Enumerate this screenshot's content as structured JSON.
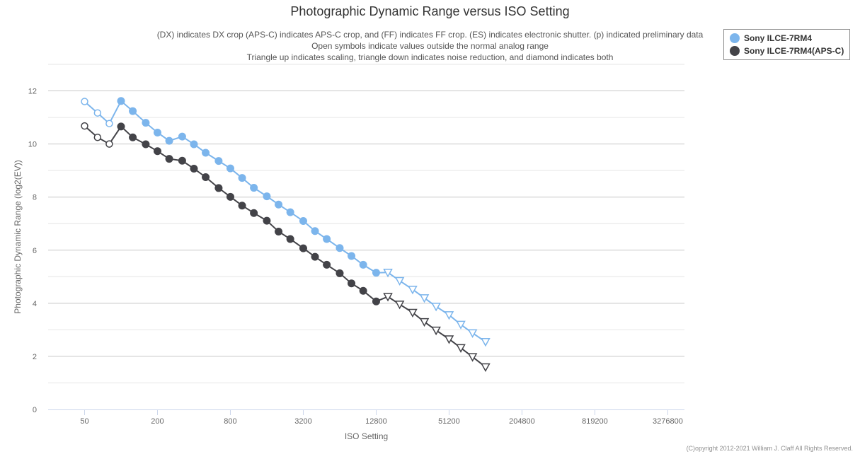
{
  "chart_data": {
    "type": "line",
    "title": "Photographic Dynamic Range versus ISO Setting",
    "subtitle_lines": [
      "(DX) indicates DX crop (APS-C) indicates APS-C crop, and (FF) indicates FF crop. (ES) indicates electronic shutter. (p) indicated preliminary data",
      "Open symbols indicate values outside the normal analog range",
      "Triangle up indicates scaling, triangle down indicates noise reduction, and diamond indicates both"
    ],
    "xlabel": "ISO Setting",
    "ylabel": "Photographic Dynamic Range (log2(EV))",
    "x_scale": "log2",
    "xlim": [
      25,
      4500000
    ],
    "x_ticks": [
      50,
      200,
      800,
      3200,
      12800,
      51200,
      204800,
      819200,
      3276800
    ],
    "x_tick_labels": [
      "50",
      "200",
      "800",
      "3200",
      "12800",
      "51200",
      "204800",
      "819200",
      "3276800"
    ],
    "ylim": [
      0,
      13
    ],
    "y_ticks": [
      0,
      2,
      4,
      6,
      8,
      10,
      12
    ],
    "grid": true,
    "legend_position": "top-right",
    "series": [
      {
        "name": "Sony ILCE-7RM4",
        "color": "#7cb5ec",
        "points": [
          {
            "iso": 50,
            "dr": 11.6,
            "marker": "open-circle"
          },
          {
            "iso": 64,
            "dr": 11.17,
            "marker": "open-circle"
          },
          {
            "iso": 80,
            "dr": 10.77,
            "marker": "open-circle"
          },
          {
            "iso": 100,
            "dr": 11.62,
            "marker": "circle"
          },
          {
            "iso": 125,
            "dr": 11.24,
            "marker": "circle"
          },
          {
            "iso": 160,
            "dr": 10.8,
            "marker": "circle"
          },
          {
            "iso": 200,
            "dr": 10.43,
            "marker": "circle"
          },
          {
            "iso": 250,
            "dr": 10.12,
            "marker": "circle"
          },
          {
            "iso": 320,
            "dr": 10.28,
            "marker": "circle"
          },
          {
            "iso": 400,
            "dr": 9.99,
            "marker": "circle"
          },
          {
            "iso": 500,
            "dr": 9.67,
            "marker": "circle"
          },
          {
            "iso": 640,
            "dr": 9.36,
            "marker": "circle"
          },
          {
            "iso": 800,
            "dr": 9.08,
            "marker": "circle"
          },
          {
            "iso": 1000,
            "dr": 8.72,
            "marker": "circle"
          },
          {
            "iso": 1250,
            "dr": 8.35,
            "marker": "circle"
          },
          {
            "iso": 1600,
            "dr": 8.03,
            "marker": "circle"
          },
          {
            "iso": 2000,
            "dr": 7.72,
            "marker": "circle"
          },
          {
            "iso": 2500,
            "dr": 7.43,
            "marker": "circle"
          },
          {
            "iso": 3200,
            "dr": 7.1,
            "marker": "circle"
          },
          {
            "iso": 4000,
            "dr": 6.72,
            "marker": "circle"
          },
          {
            "iso": 5000,
            "dr": 6.42,
            "marker": "circle"
          },
          {
            "iso": 6400,
            "dr": 6.08,
            "marker": "circle"
          },
          {
            "iso": 8000,
            "dr": 5.78,
            "marker": "circle"
          },
          {
            "iso": 10000,
            "dr": 5.45,
            "marker": "circle"
          },
          {
            "iso": 12800,
            "dr": 5.15,
            "marker": "circle"
          },
          {
            "iso": 16000,
            "dr": 5.16,
            "marker": "open-triangle-down"
          },
          {
            "iso": 20000,
            "dr": 4.85,
            "marker": "open-triangle-down"
          },
          {
            "iso": 25600,
            "dr": 4.52,
            "marker": "open-triangle-down"
          },
          {
            "iso": 32000,
            "dr": 4.2,
            "marker": "open-triangle-down"
          },
          {
            "iso": 40000,
            "dr": 3.88,
            "marker": "open-triangle-down"
          },
          {
            "iso": 51200,
            "dr": 3.56,
            "marker": "open-triangle-down"
          },
          {
            "iso": 64000,
            "dr": 3.2,
            "marker": "open-triangle-down"
          },
          {
            "iso": 80000,
            "dr": 2.88,
            "marker": "open-triangle-down"
          },
          {
            "iso": 102400,
            "dr": 2.55,
            "marker": "open-triangle-down"
          }
        ]
      },
      {
        "name": "Sony ILCE-7RM4(APS-C)",
        "color": "#434348",
        "points": [
          {
            "iso": 50,
            "dr": 10.68,
            "marker": "open-circle"
          },
          {
            "iso": 64,
            "dr": 10.25,
            "marker": "open-circle"
          },
          {
            "iso": 80,
            "dr": 10.0,
            "marker": "open-circle"
          },
          {
            "iso": 100,
            "dr": 10.66,
            "marker": "circle"
          },
          {
            "iso": 125,
            "dr": 10.25,
            "marker": "circle"
          },
          {
            "iso": 160,
            "dr": 9.99,
            "marker": "circle"
          },
          {
            "iso": 200,
            "dr": 9.73,
            "marker": "circle"
          },
          {
            "iso": 250,
            "dr": 9.44,
            "marker": "circle"
          },
          {
            "iso": 320,
            "dr": 9.37,
            "marker": "circle"
          },
          {
            "iso": 400,
            "dr": 9.07,
            "marker": "circle"
          },
          {
            "iso": 500,
            "dr": 8.75,
            "marker": "circle"
          },
          {
            "iso": 640,
            "dr": 8.34,
            "marker": "circle"
          },
          {
            "iso": 800,
            "dr": 8.01,
            "marker": "circle"
          },
          {
            "iso": 1000,
            "dr": 7.68,
            "marker": "circle"
          },
          {
            "iso": 1250,
            "dr": 7.4,
            "marker": "circle"
          },
          {
            "iso": 1600,
            "dr": 7.11,
            "marker": "circle"
          },
          {
            "iso": 2000,
            "dr": 6.7,
            "marker": "circle"
          },
          {
            "iso": 2500,
            "dr": 6.42,
            "marker": "circle"
          },
          {
            "iso": 3200,
            "dr": 6.07,
            "marker": "circle"
          },
          {
            "iso": 4000,
            "dr": 5.75,
            "marker": "circle"
          },
          {
            "iso": 5000,
            "dr": 5.45,
            "marker": "circle"
          },
          {
            "iso": 6400,
            "dr": 5.13,
            "marker": "circle"
          },
          {
            "iso": 8000,
            "dr": 4.75,
            "marker": "circle"
          },
          {
            "iso": 10000,
            "dr": 4.47,
            "marker": "circle"
          },
          {
            "iso": 12800,
            "dr": 4.07,
            "marker": "circle"
          },
          {
            "iso": 16000,
            "dr": 4.25,
            "marker": "open-triangle-down"
          },
          {
            "iso": 20000,
            "dr": 3.96,
            "marker": "open-triangle-down"
          },
          {
            "iso": 25600,
            "dr": 3.65,
            "marker": "open-triangle-down"
          },
          {
            "iso": 32000,
            "dr": 3.3,
            "marker": "open-triangle-down"
          },
          {
            "iso": 40000,
            "dr": 2.98,
            "marker": "open-triangle-down"
          },
          {
            "iso": 51200,
            "dr": 2.65,
            "marker": "open-triangle-down"
          },
          {
            "iso": 64000,
            "dr": 2.32,
            "marker": "open-triangle-down"
          },
          {
            "iso": 80000,
            "dr": 1.98,
            "marker": "open-triangle-down"
          },
          {
            "iso": 102400,
            "dr": 1.6,
            "marker": "open-triangle-down"
          }
        ]
      }
    ]
  },
  "copyright": "(C)opyright 2012-2021 William J. Claff All Rights Reserved."
}
